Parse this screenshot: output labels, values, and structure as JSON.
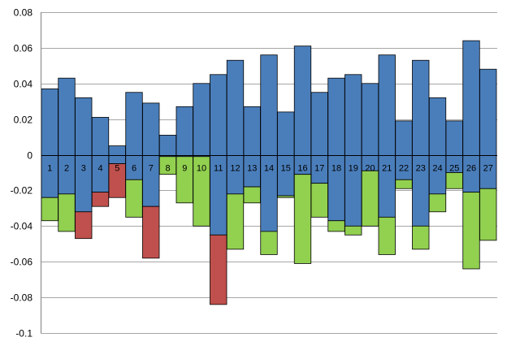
{
  "chart_data": {
    "type": "bar",
    "title": "",
    "xlabel": "",
    "ylabel": "",
    "ylim": [
      -0.1,
      0.08
    ],
    "y_ticks": [
      0.08,
      0.06,
      0.04,
      0.02,
      0,
      -0.02,
      -0.04,
      -0.06,
      -0.08,
      -0.1
    ],
    "y_tick_labels": [
      "0.08",
      "0.06",
      "0.04",
      "0.02",
      "0",
      "-0.02",
      "-0.04",
      "-0.06",
      "-0.08",
      "-0.1"
    ],
    "grid": true,
    "categories": [
      "1",
      "2",
      "3",
      "4",
      "5",
      "6",
      "7",
      "8",
      "9",
      "10",
      "11",
      "12",
      "13",
      "14",
      "15",
      "16",
      "17",
      "18",
      "19",
      "20",
      "21",
      "22",
      "23",
      "24",
      "25",
      "26",
      "27"
    ],
    "series": [
      {
        "color": "#4a7ebb",
        "ranges": [
          [
            -0.024,
            0.037
          ],
          [
            -0.022,
            0.043
          ],
          [
            -0.032,
            0.032
          ],
          [
            -0.021,
            0.021
          ],
          [
            -0.005,
            0.005
          ],
          [
            -0.014,
            0.035
          ],
          [
            -0.029,
            0.029
          ],
          [
            -0.001,
            0.011
          ],
          [
            -0.001,
            0.027
          ],
          [
            -0.001,
            0.04
          ],
          [
            -0.045,
            0.045
          ],
          [
            -0.022,
            0.053
          ],
          [
            -0.018,
            0.027
          ],
          [
            -0.043,
            0.056
          ],
          [
            -0.023,
            0.024
          ],
          [
            -0.011,
            0.061
          ],
          [
            -0.016,
            0.035
          ],
          [
            -0.037,
            0.043
          ],
          [
            -0.04,
            0.045
          ],
          [
            -0.009,
            0.04
          ],
          [
            -0.035,
            0.056
          ],
          [
            -0.014,
            0.019
          ],
          [
            -0.04,
            0.053
          ],
          [
            -0.022,
            0.032
          ],
          [
            -0.01,
            0.019
          ],
          [
            -0.021,
            0.064
          ],
          [
            -0.019,
            0.048
          ]
        ]
      },
      {
        "color": "#92d050",
        "ranges": [
          [
            -0.037,
            -0.024
          ],
          [
            -0.043,
            -0.022
          ],
          null,
          null,
          null,
          [
            -0.035,
            -0.014
          ],
          null,
          [
            -0.011,
            -0.001
          ],
          [
            -0.027,
            -0.001
          ],
          [
            -0.04,
            -0.001
          ],
          null,
          [
            -0.053,
            -0.022
          ],
          [
            -0.027,
            -0.018
          ],
          [
            -0.056,
            -0.043
          ],
          [
            -0.024,
            -0.023
          ],
          [
            -0.061,
            -0.011
          ],
          [
            -0.035,
            -0.016
          ],
          [
            -0.043,
            -0.037
          ],
          [
            -0.045,
            -0.04
          ],
          [
            -0.04,
            -0.009
          ],
          [
            -0.056,
            -0.035
          ],
          [
            -0.019,
            -0.014
          ],
          [
            -0.053,
            -0.04
          ],
          [
            -0.032,
            -0.022
          ],
          [
            -0.019,
            -0.01
          ],
          [
            -0.064,
            -0.021
          ],
          [
            -0.048,
            -0.019
          ]
        ]
      },
      {
        "color": "#c0504d",
        "ranges": [
          null,
          null,
          [
            -0.047,
            -0.032
          ],
          [
            -0.029,
            -0.021
          ],
          [
            -0.024,
            -0.005
          ],
          null,
          [
            -0.058,
            -0.029
          ],
          null,
          null,
          null,
          [
            -0.084,
            -0.045
          ],
          null,
          null,
          null,
          null,
          null,
          null,
          null,
          null,
          null,
          null,
          null,
          null,
          null,
          null,
          null,
          null
        ]
      }
    ]
  }
}
